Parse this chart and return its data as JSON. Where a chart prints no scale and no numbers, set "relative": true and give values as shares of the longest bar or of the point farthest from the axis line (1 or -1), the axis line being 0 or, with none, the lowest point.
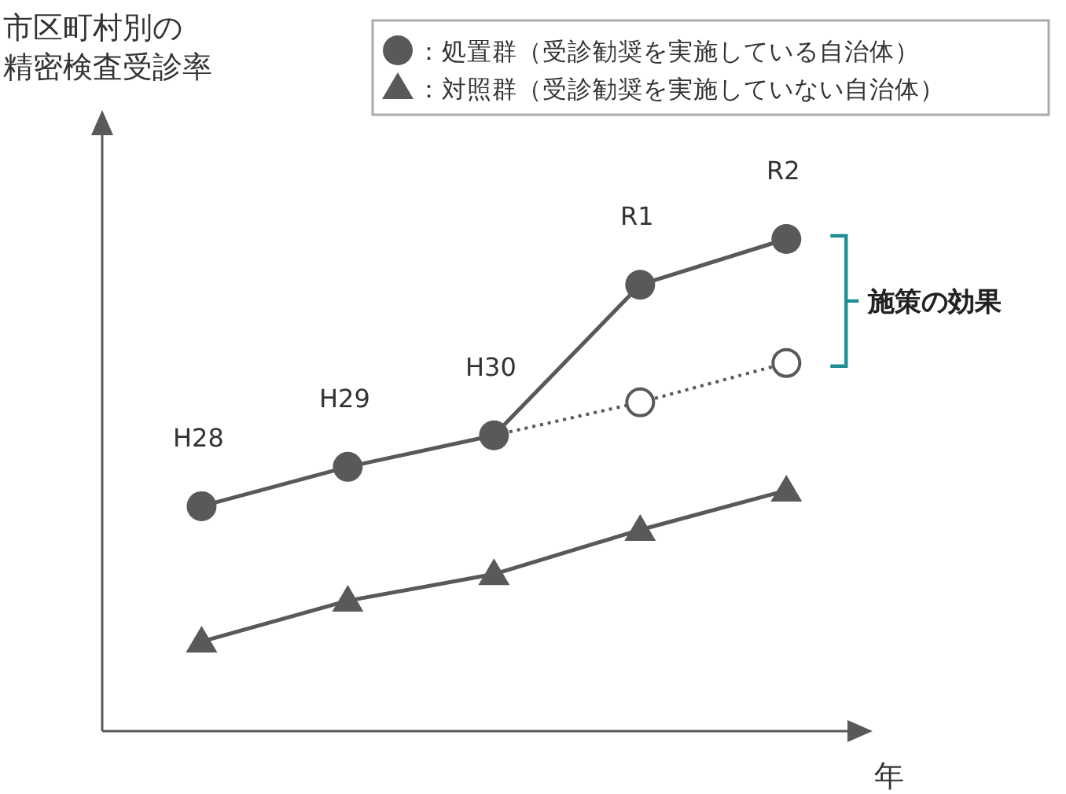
{
  "chart_data": {
    "type": "line",
    "relative": true,
    "xlabel": "年",
    "categories": [
      "H28",
      "H29",
      "H30",
      "R1",
      "R2"
    ],
    "legend": "top right",
    "annotations": [
      "施策の効果",
      "市区町村別の精密検査受診率"
    ],
    "series": [
      {
        "name": "：処置群（受診勧奨を実施している自治体）",
        "color": "#595959",
        "marker": "circle",
        "line_style": "solid",
        "values": [
          0.457,
          0.537,
          0.601,
          0.907,
          1
        ]
      },
      {
        "color": "#595959",
        "marker": "circle",
        "line_style": "dotted",
        "values": [
          null,
          null,
          0.601,
          0.668,
          0.748
        ]
      },
      {
        "name": "：対照群（受診勧奨を実施していない自治体）",
        "color": "#595959",
        "marker": "triangle",
        "line_style": "solid",
        "values": [
          0.182,
          0.265,
          0.319,
          0.409,
          0.489
        ]
      }
    ]
  }
}
